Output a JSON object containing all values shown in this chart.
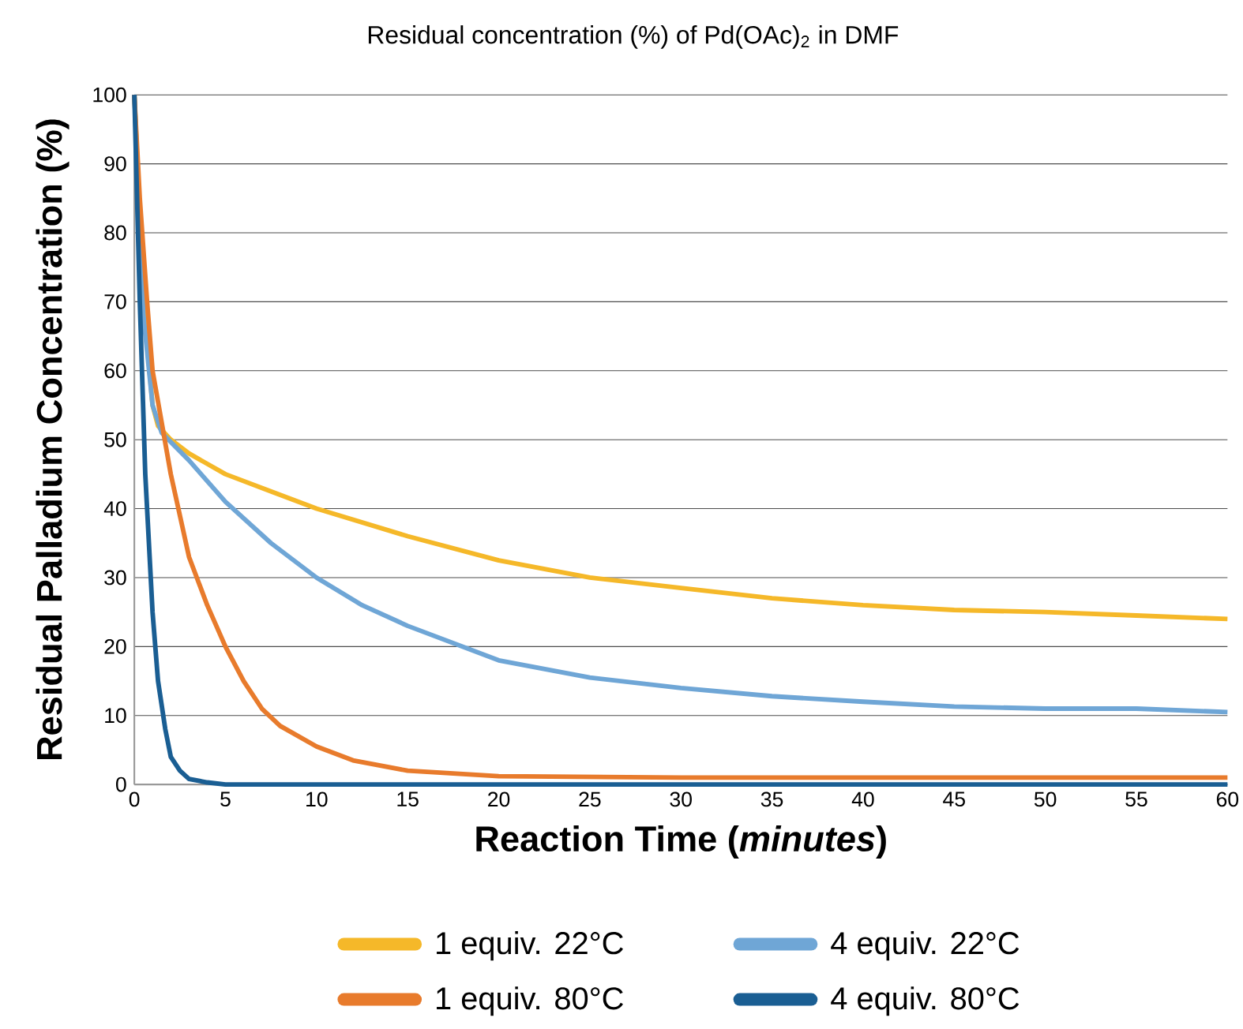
{
  "chart_data": {
    "type": "line",
    "title": "Residual concentration (%) of Pd(OAc)$_{2}$ in DMF",
    "xlabel": "Reaction Time (*minutes*)",
    "ylabel": "Residual Palladium Concentration (%)",
    "xlim": [
      0,
      60
    ],
    "ylim": [
      0,
      100
    ],
    "xticks": [
      0,
      5,
      10,
      15,
      20,
      25,
      30,
      35,
      40,
      45,
      50,
      55,
      60
    ],
    "yticks": [
      0,
      10,
      20,
      30,
      40,
      50,
      60,
      70,
      80,
      90,
      100
    ],
    "grid": "y",
    "legend": "bottom",
    "marker": "none",
    "line_style": "solid",
    "series": [
      {
        "name": "1 equiv. 22°C",
        "color": "#f5b829",
        "x": [
          0,
          0.5,
          1,
          1.3,
          2,
          3,
          5,
          7.5,
          10,
          12.5,
          15,
          20,
          25,
          30,
          35,
          40,
          45,
          50,
          55,
          60
        ],
        "values": [
          100,
          70,
          55,
          52,
          50,
          48,
          45,
          42.5,
          40,
          38,
          36,
          32.5,
          30,
          28.5,
          27,
          26,
          25.3,
          25,
          24.5,
          24
        ]
      },
      {
        "name": "4 equiv. 22°C",
        "color": "#6fa6d6",
        "x": [
          0,
          0.5,
          1,
          1.5,
          3,
          5,
          7.5,
          10,
          12.5,
          15,
          20,
          25,
          30,
          35,
          40,
          45,
          50,
          55,
          60
        ],
        "values": [
          100,
          68,
          55,
          51,
          47,
          41,
          35,
          30,
          26,
          23,
          18,
          15.5,
          14,
          12.8,
          12,
          11.3,
          11,
          11,
          10.5
        ]
      },
      {
        "name": "1 equiv. 80°C",
        "color": "#e87b2c",
        "x": [
          0,
          0.3,
          0.7,
          1,
          2,
          3,
          4,
          5,
          6,
          7,
          8,
          10,
          12,
          15,
          20,
          30,
          40,
          50,
          60
        ],
        "values": [
          100,
          85,
          70,
          60,
          45,
          33,
          26,
          20,
          15,
          11,
          8.5,
          5.5,
          3.5,
          2,
          1.2,
          1,
          1,
          1,
          1
        ]
      },
      {
        "name": "4 equiv. 80°C",
        "color": "#1a5e93",
        "x": [
          0,
          0.3,
          0.6,
          1,
          1.3,
          1.7,
          2,
          2.5,
          3,
          4,
          5,
          10,
          20,
          30,
          40,
          50,
          60
        ],
        "values": [
          100,
          70,
          45,
          25,
          15,
          8,
          4,
          2,
          0.8,
          0.3,
          0,
          0,
          0,
          0,
          0,
          0,
          0
        ]
      }
    ]
  }
}
